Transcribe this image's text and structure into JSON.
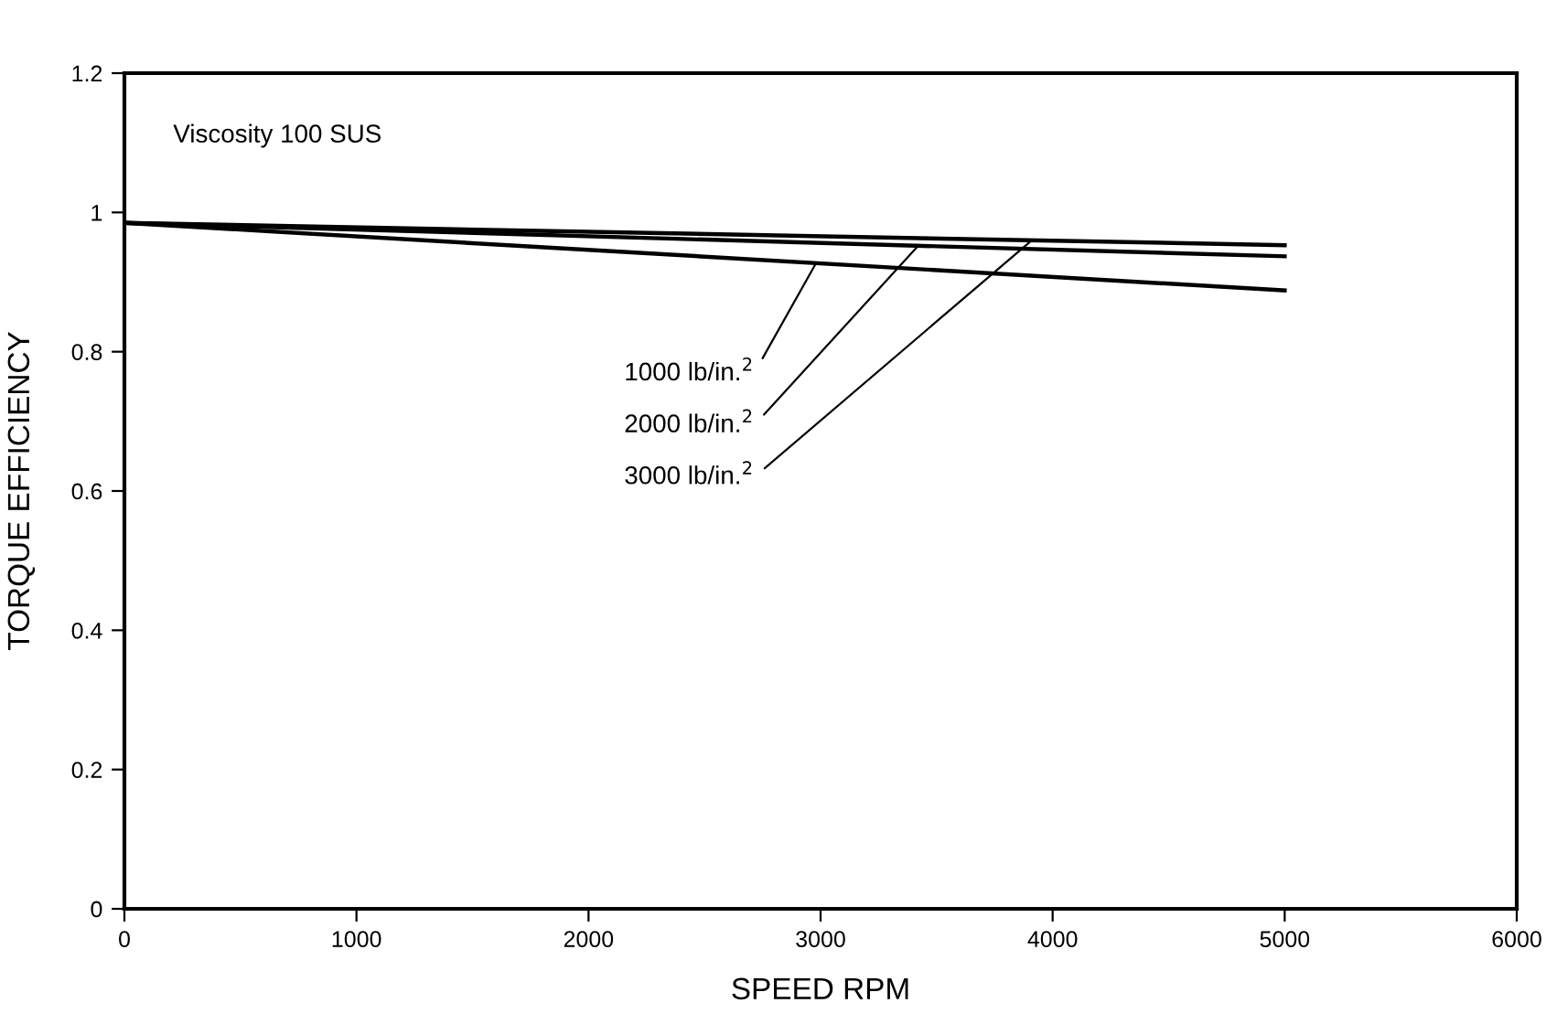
{
  "chart_data": {
    "type": "line",
    "xlabel": "SPEED RPM",
    "ylabel": "TORQUE EFFICIENCY",
    "xlim": [
      0,
      6000
    ],
    "xticks": [
      0,
      1000,
      2000,
      3000,
      4000,
      5000,
      6000
    ],
    "ylim": [
      0,
      1.2
    ],
    "yticks": [
      0,
      0.2,
      0.4,
      0.6,
      0.8,
      1,
      1.2
    ],
    "grid": false,
    "marker": "none",
    "line_style": "solid",
    "x": [
      0,
      5000
    ],
    "series": [
      {
        "color": "#000000",
        "values": [
          0.985,
          0.888
        ]
      },
      {
        "color": "#000000",
        "values": [
          0.985,
          0.937
        ]
      },
      {
        "color": "#000000",
        "values": [
          0.985,
          0.953
        ]
      }
    ],
    "annotations": [
      "Viscosity 100 SUS",
      {
        "text": "1000 lb/in.$^{2}$",
        "x": 2980,
        "y": 0.927
      },
      {
        "text": "2000 lb/in.$^{2}$",
        "x": 3420,
        "y": 0.952
      },
      {
        "text": "3000 lb/in.$^{2}$",
        "x": 3910,
        "y": 0.96
      }
    ]
  }
}
